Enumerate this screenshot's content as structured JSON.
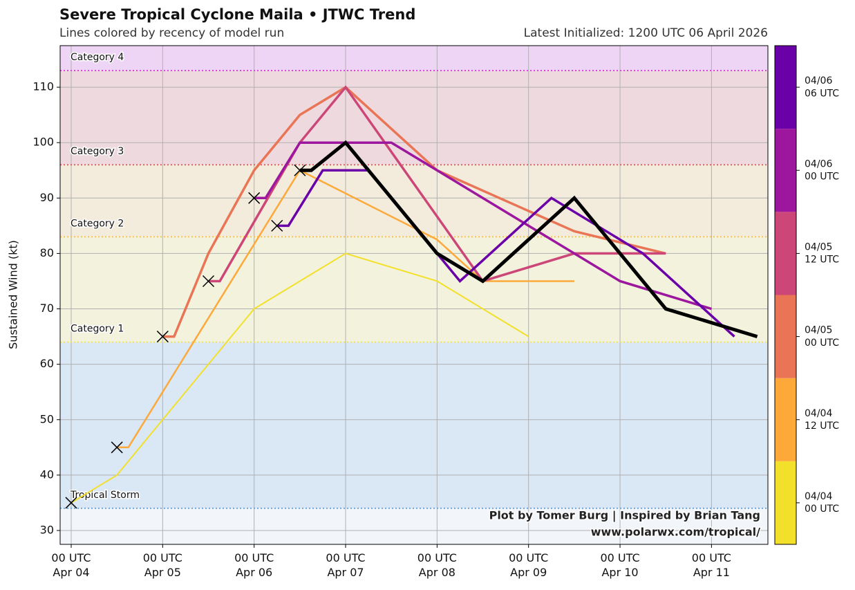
{
  "chart_data": {
    "type": "line",
    "title": "Severe Tropical Cyclone Maila • JTWC Trend",
    "subtitle": "Lines colored by recency of model run",
    "annotation": "Latest Initialized: 1200 UTC 06 April 2026",
    "ylabel": "Sustained Wind (kt)",
    "credits": [
      "Plot by Tomer Burg | Inspired by Brian Tang",
      "www.polarwx.com/tropical/"
    ],
    "xlim": [
      -2.9,
      182.8
    ],
    "xticks": [
      {
        "value": 0,
        "label": "00 UTC\nApr 04"
      },
      {
        "value": 24,
        "label": "00 UTC\nApr 05"
      },
      {
        "value": 48,
        "label": "00 UTC\nApr 06"
      },
      {
        "value": 72,
        "label": "00 UTC\nApr 07"
      },
      {
        "value": 96,
        "label": "00 UTC\nApr 08"
      },
      {
        "value": 120,
        "label": "00 UTC\nApr 09"
      },
      {
        "value": 144,
        "label": "00 UTC\nApr 10"
      },
      {
        "value": 168,
        "label": "00 UTC\nApr 11"
      }
    ],
    "ylim": [
      27.5,
      117.5
    ],
    "yticks": [
      30,
      40,
      50,
      60,
      70,
      80,
      90,
      100,
      110
    ],
    "grid": true,
    "thresholds": [
      {
        "name": "Tropical Storm",
        "value": 34,
        "color": "#6fa8dc"
      },
      {
        "name": "Category 1",
        "value": 64,
        "color": "#f2e35a"
      },
      {
        "name": "Category 2",
        "value": 83,
        "color": "#f7c451"
      },
      {
        "name": "Category 3",
        "value": 96,
        "color": "#e06060"
      },
      {
        "name": "Category 4",
        "value": 113,
        "color": "#e045e0"
      }
    ],
    "series": [
      {
        "name": "04/04\n00 UTC",
        "color": "#f3e02a",
        "width": 2,
        "x": [
          0,
          12,
          48,
          72,
          96,
          120
        ],
        "values": [
          35,
          40,
          70,
          80,
          75,
          65
        ]
      },
      {
        "name": "04/04\n12 UTC",
        "color": "#fca93a",
        "width": 2.5,
        "x": [
          12,
          15,
          60,
          96,
          108,
          132
        ],
        "values": [
          45,
          45,
          95,
          82.5,
          75,
          75
        ]
      },
      {
        "name": "04/05\n00 UTC",
        "color": "#e97556",
        "width": 3.5,
        "x": [
          24,
          27,
          36,
          48,
          60,
          72,
          96,
          132,
          156
        ],
        "values": [
          65,
          65,
          80,
          95,
          105,
          110,
          95,
          84,
          80
        ]
      },
      {
        "name": "04/05\n12 UTC",
        "color": "#cc4778",
        "width": 3.5,
        "x": [
          36,
          39,
          60,
          72,
          108,
          132,
          156
        ],
        "values": [
          75,
          75,
          100,
          110,
          75,
          80,
          80
        ]
      },
      {
        "name": "04/06\n00 UTC",
        "color": "#9c179e",
        "width": 3.5,
        "x": [
          48,
          51,
          60,
          84,
          120,
          144,
          168
        ],
        "values": [
          90,
          90,
          100,
          100,
          85,
          75,
          70
        ]
      },
      {
        "name": "04/06\n06 UTC",
        "color": "#6a00a8",
        "width": 3.5,
        "x": [
          54,
          57,
          66,
          78,
          96,
          102,
          126,
          150,
          174
        ],
        "values": [
          85,
          85,
          95,
          95,
          80,
          75,
          90,
          80,
          65
        ]
      },
      {
        "color": "#000000",
        "width": 5,
        "x": [
          60,
          63,
          72,
          96,
          108,
          132,
          156,
          180
        ],
        "values": [
          95,
          95,
          100,
          80,
          75,
          90,
          70,
          65
        ]
      }
    ]
  }
}
